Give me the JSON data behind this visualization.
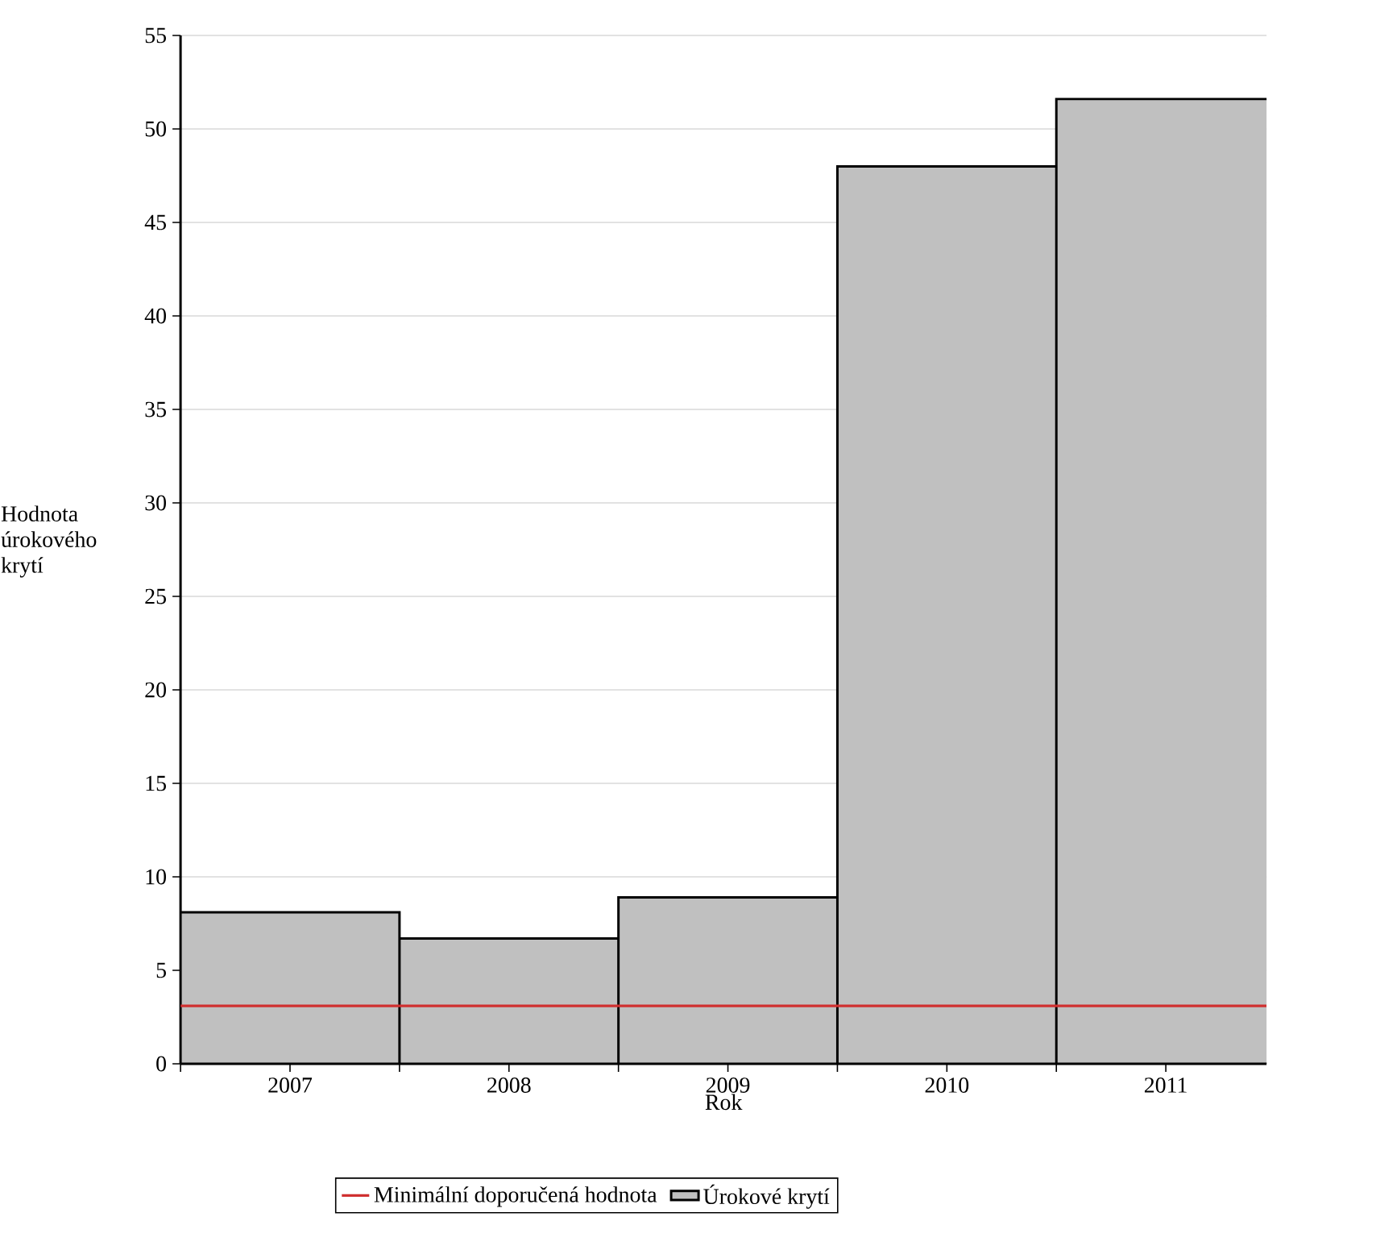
{
  "chart_data": {
    "type": "bar",
    "xlabel": "Rok",
    "ylabel": "Hodnota úrokového krytí",
    "categories": [
      "2007",
      "2008",
      "2009",
      "2010",
      "2011"
    ],
    "series": [
      {
        "name": "Úrokové krytí",
        "color": "#c0c0c0",
        "values": [
          8.1,
          6.7,
          8.9,
          48.0,
          51.6
        ]
      }
    ],
    "ylim": [
      0,
      55
    ],
    "yticks": [
      0,
      5,
      10,
      15,
      20,
      25,
      30,
      35,
      40,
      45,
      50,
      55
    ],
    "ref_lines": [
      {
        "axis": "y",
        "value": 3.1,
        "label": "Minimální doporučená hodnota",
        "color": "#d03030"
      }
    ],
    "grid": "y",
    "legend": "bottom"
  }
}
